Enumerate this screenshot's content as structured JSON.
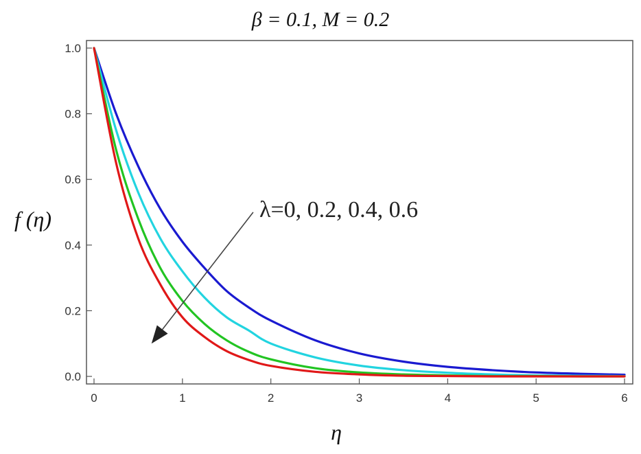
{
  "chart_data": {
    "type": "line",
    "title": "β = 0.1, M = 0.2",
    "xlabel": "η",
    "ylabel": "f (η)",
    "xlim": [
      0,
      6
    ],
    "ylim": [
      0,
      1.0
    ],
    "x_ticks": [
      "0",
      "1",
      "2",
      "3",
      "4",
      "5",
      "6"
    ],
    "y_ticks": [
      "0.0",
      "0.2",
      "0.4",
      "0.6",
      "0.8",
      "1.0"
    ],
    "x": [
      0,
      0.25,
      0.5,
      0.75,
      1.0,
      1.25,
      1.5,
      1.75,
      2.0,
      2.5,
      3.0,
      3.5,
      4.0,
      4.5,
      5.0,
      5.5,
      6.0
    ],
    "series": [
      {
        "color": "#1a1ad0",
        "values": [
          1.0,
          0.8,
          0.64,
          0.51,
          0.41,
          0.33,
          0.26,
          0.21,
          0.17,
          0.11,
          0.07,
          0.045,
          0.029,
          0.019,
          0.012,
          0.008,
          0.005
        ]
      },
      {
        "color": "#22d4e0",
        "values": [
          1.0,
          0.75,
          0.56,
          0.42,
          0.32,
          0.24,
          0.18,
          0.14,
          0.1,
          0.058,
          0.033,
          0.019,
          0.011,
          0.006,
          0.003,
          0.002,
          0.001
        ]
      },
      {
        "color": "#22c422",
        "values": [
          1.0,
          0.69,
          0.48,
          0.33,
          0.23,
          0.16,
          0.11,
          0.075,
          0.052,
          0.025,
          0.012,
          0.006,
          0.003,
          0.001,
          0.001,
          0.0,
          0.0
        ]
      },
      {
        "color": "#e01818",
        "values": [
          1.0,
          0.65,
          0.42,
          0.28,
          0.18,
          0.12,
          0.077,
          0.05,
          0.032,
          0.014,
          0.006,
          0.002,
          0.001,
          0.0,
          0.0,
          0.0,
          0.0
        ]
      }
    ],
    "annotation": {
      "text": "λ=0, 0.2, 0.4, 0.6",
      "arrow_from": [
        1.8,
        0.5
      ],
      "arrow_to": [
        0.65,
        0.1
      ]
    },
    "grid": false,
    "legend": "none"
  }
}
